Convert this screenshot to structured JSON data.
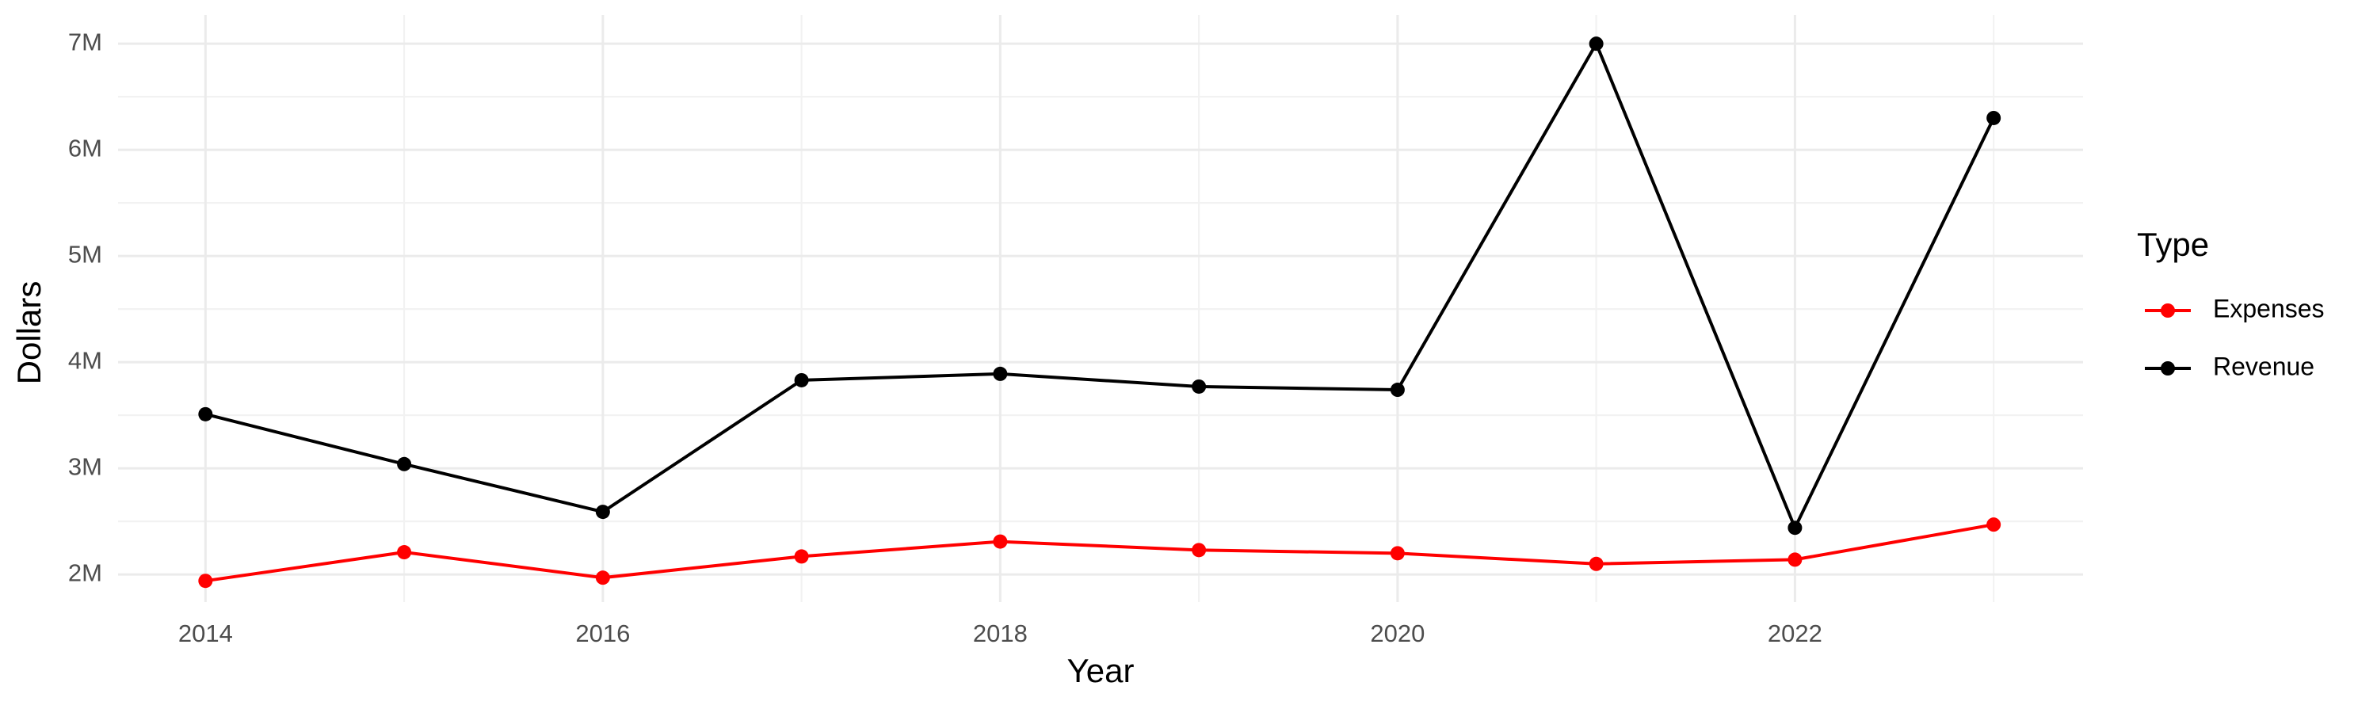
{
  "chart_data": {
    "type": "line",
    "x_label": "Year",
    "y_label": "Dollars",
    "legend_title": "Type",
    "legend_position": "right",
    "grid": true,
    "x": [
      2014,
      2015,
      2016,
      2017,
      2018,
      2019,
      2020,
      2021,
      2022,
      2023
    ],
    "series": [
      {
        "name": "Expenses",
        "color": "#ff0000",
        "values": [
          1940000,
          2210000,
          1970000,
          2170000,
          2310000,
          2230000,
          2200000,
          2100000,
          2140000,
          2470000
        ]
      },
      {
        "name": "Revenue",
        "color": "#000000",
        "values": [
          3510000,
          3040000,
          2590000,
          3830000,
          3890000,
          3770000,
          3740000,
          7000000,
          2440000,
          6300000
        ]
      }
    ],
    "xlim": [
      2013.56,
      2023.45
    ],
    "xticks": [
      2014,
      2016,
      2018,
      2020,
      2022
    ],
    "ylim": [
      1740000,
      7270000
    ],
    "yticks": [
      {
        "value": 2000000,
        "label": "2M"
      },
      {
        "value": 3000000,
        "label": "3M"
      },
      {
        "value": 4000000,
        "label": "4M"
      },
      {
        "value": 5000000,
        "label": "5M"
      },
      {
        "value": 6000000,
        "label": "6M"
      },
      {
        "value": 7000000,
        "label": "7M"
      }
    ]
  }
}
